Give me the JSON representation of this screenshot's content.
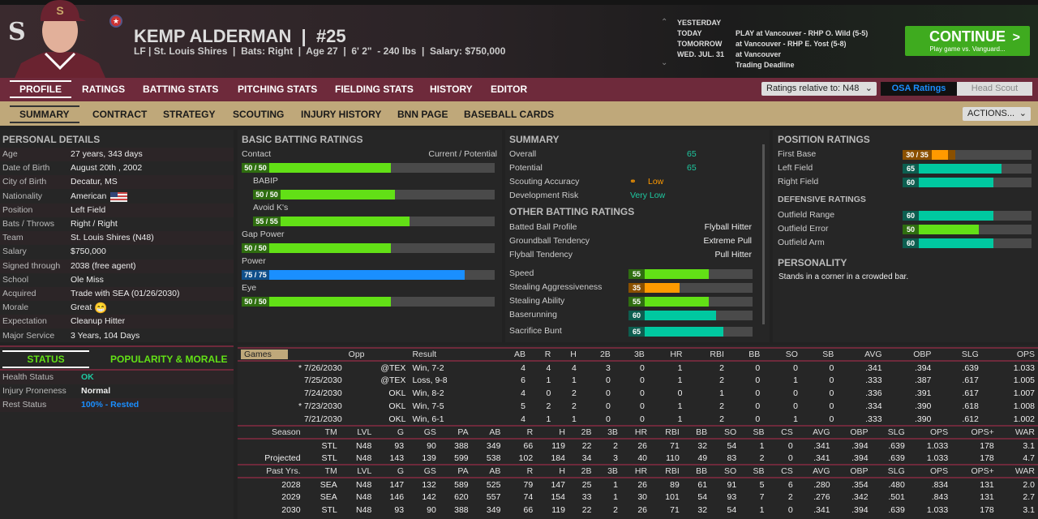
{
  "header": {
    "name": "KEMP ALDERMAN  |  #25",
    "info": "LF | St. Louis Shires  |  Bats: Right  |  Age 27  |  6' 2\"  - 240 lbs  |  Salary: $750,000",
    "logo": "S"
  },
  "schedule": [
    {
      "day": "YESTERDAY",
      "event": ""
    },
    {
      "day": "TODAY",
      "event": "PLAY at Vancouver - RHP O. Wild (5-5)"
    },
    {
      "day": "TOMORROW",
      "event": "at Vancouver - RHP E. Yost (5-8)"
    },
    {
      "day": "WED. JUL. 31",
      "event": "at Vancouver"
    },
    {
      "day": "",
      "event": "Trading Deadline"
    }
  ],
  "continue": {
    "label": "CONTINUE",
    "sub": "Play game vs. Vanguard...",
    "chevron": ">"
  },
  "main_tabs": [
    "PROFILE",
    "RATINGS",
    "BATTING STATS",
    "PITCHING STATS",
    "FIELDING STATS",
    "HISTORY",
    "EDITOR"
  ],
  "ratings_relative": "Ratings relative to: N48",
  "osa": "OSA Ratings",
  "head_scout": "Head Scout",
  "sub_tabs": [
    "SUMMARY",
    "CONTRACT",
    "STRATEGY",
    "SCOUTING",
    "INJURY HISTORY",
    "BNN PAGE",
    "BASEBALL CARDS"
  ],
  "actions": "ACTIONS...",
  "personal": {
    "title": "PERSONAL DETAILS",
    "rows": [
      [
        "Age",
        "27 years, 343 days"
      ],
      [
        "Date of Birth",
        "August 20th , 2002"
      ],
      [
        "City of Birth",
        "Decatur, MS"
      ],
      [
        "Nationality",
        "American"
      ],
      [
        "Position",
        "Left Field"
      ],
      [
        "Bats / Throws",
        "Right / Right"
      ],
      [
        "Team",
        "St. Louis Shires (N48)"
      ],
      [
        "Salary",
        "$750,000"
      ],
      [
        "Signed through",
        "2038 (free agent)"
      ],
      [
        "School",
        "Ole Miss"
      ],
      [
        "Acquired",
        "Trade with SEA (01/26/2030)"
      ],
      [
        "Morale",
        "Great"
      ],
      [
        "Expectation",
        "Cleanup Hitter"
      ],
      [
        "Major Service",
        "3 Years, 104 Days"
      ]
    ]
  },
  "status": {
    "tab1": "STATUS",
    "tab2": "POPULARITY & MORALE",
    "rows": [
      [
        "Health Status",
        "OK",
        "#1ec8a0"
      ],
      [
        "Injury Proneness",
        "Normal",
        "#eeeeee"
      ],
      [
        "Rest Status",
        "100% - Rested",
        "#1a8fff"
      ]
    ]
  },
  "colors": {
    "green": "#62e016",
    "blue": "#1a8fff",
    "orange": "#ff9a00",
    "teal": "#00c8a0",
    "maroon": "#6e2a3b",
    "tan": "#bfa87a"
  },
  "batting": {
    "title": "BASIC BATTING RATINGS",
    "cp": "Current / Potential",
    "items": [
      {
        "name": "Contact",
        "label": "50 / 50",
        "value": 50,
        "color": "green",
        "indent": false
      },
      {
        "name": "BABIP",
        "label": "50 / 50",
        "value": 50,
        "color": "green",
        "indent": true
      },
      {
        "name": "Avoid K's",
        "label": "55 / 55",
        "value": 55,
        "color": "green",
        "indent": true
      },
      {
        "name": "Gap Power",
        "label": "50 / 50",
        "value": 50,
        "color": "green",
        "indent": false
      },
      {
        "name": "Power",
        "label": "75 / 75",
        "value": 75,
        "color": "blue",
        "indent": false
      },
      {
        "name": "Eye",
        "label": "50 / 50",
        "value": 50,
        "color": "green",
        "indent": false
      }
    ]
  },
  "summary": {
    "title": "SUMMARY",
    "overall_l": "Overall",
    "overall": "65",
    "potential_l": "Potential",
    "potential": "65",
    "acc_l": "Scouting Accuracy",
    "acc": "Low",
    "risk_l": "Development Risk",
    "risk": "Very Low",
    "other_title": "OTHER BATTING RATINGS",
    "other": [
      [
        "Batted Ball Profile",
        "Flyball Hitter"
      ],
      [
        "Groundball Tendency",
        "Extreme Pull"
      ],
      [
        "Flyball Tendency",
        "Pull Hitter"
      ]
    ],
    "bars": [
      {
        "name": "Speed",
        "label": "55",
        "value": 55,
        "color": "green"
      },
      {
        "name": "Stealing Aggressiveness",
        "label": "35",
        "value": 35,
        "color": "orange"
      },
      {
        "name": "Stealing Ability",
        "label": "55",
        "value": 55,
        "color": "green"
      },
      {
        "name": "Baserunning",
        "label": "60",
        "value": 60,
        "color": "teal"
      },
      {
        "name": "Sacrifice Bunt",
        "label": "65",
        "value": 65,
        "color": "teal"
      }
    ]
  },
  "position": {
    "title": "POSITION RATINGS",
    "bars": [
      {
        "name": "First Base",
        "label": "30 / 35",
        "value": 30,
        "potential": 35,
        "color": "orange"
      },
      {
        "name": "Left Field",
        "label": "65",
        "value": 65,
        "color": "teal"
      },
      {
        "name": "Right Field",
        "label": "60",
        "value": 60,
        "color": "teal"
      }
    ],
    "def_title": "DEFENSIVE RATINGS",
    "def": [
      {
        "name": "Outfield Range",
        "label": "60",
        "value": 60,
        "color": "teal"
      },
      {
        "name": "Outfield Error",
        "label": "50",
        "value": 50,
        "color": "green"
      },
      {
        "name": "Outfield Arm",
        "label": "60",
        "value": 60,
        "color": "teal"
      }
    ],
    "pers_title": "PERSONALITY",
    "personality": "Stands in a corner in a crowded bar."
  },
  "games": {
    "selector": "Games",
    "headers": [
      "Opp",
      "Result",
      "AB",
      "R",
      "H",
      "2B",
      "3B",
      "HR",
      "RBI",
      "BB",
      "SO",
      "SB",
      "AVG",
      "OBP",
      "SLG",
      "OPS"
    ],
    "rows": [
      [
        "* 7/26/2030",
        "@TEX",
        "Win, 7-2",
        "4",
        "4",
        "4",
        "3",
        "0",
        "1",
        "2",
        "0",
        "0",
        "0",
        ".341",
        ".394",
        ".639",
        "1.033"
      ],
      [
        "7/25/2030",
        "@TEX",
        "Loss, 9-8",
        "6",
        "1",
        "1",
        "0",
        "0",
        "1",
        "2",
        "0",
        "1",
        "0",
        ".333",
        ".387",
        ".617",
        "1.005"
      ],
      [
        "7/24/2030",
        "OKL",
        "Win, 8-2",
        "4",
        "0",
        "2",
        "0",
        "0",
        "0",
        "1",
        "0",
        "0",
        "0",
        ".336",
        ".391",
        ".617",
        "1.007"
      ],
      [
        "* 7/23/2030",
        "OKL",
        "Win, 7-5",
        "5",
        "2",
        "2",
        "0",
        "0",
        "1",
        "2",
        "0",
        "0",
        "0",
        ".334",
        ".390",
        ".618",
        "1.008"
      ],
      [
        "7/21/2030",
        "OKL",
        "Win, 6-1",
        "4",
        "1",
        "1",
        "0",
        "0",
        "1",
        "2",
        "0",
        "1",
        "0",
        ".333",
        ".390",
        ".612",
        "1.002"
      ]
    ]
  },
  "season": {
    "headers": [
      "Season",
      "TM",
      "LVL",
      "G",
      "GS",
      "PA",
      "AB",
      "R",
      "H",
      "2B",
      "3B",
      "HR",
      "RBI",
      "BB",
      "SO",
      "SB",
      "CS",
      "AVG",
      "OBP",
      "SLG",
      "OPS",
      "OPS+",
      "WAR"
    ],
    "rows": [
      [
        "",
        "STL",
        "N48",
        "93",
        "90",
        "388",
        "349",
        "66",
        "119",
        "22",
        "2",
        "26",
        "71",
        "32",
        "54",
        "1",
        "0",
        ".341",
        ".394",
        ".639",
        "1.033",
        "178",
        "3.1"
      ],
      [
        "Projected",
        "STL",
        "N48",
        "143",
        "139",
        "599",
        "538",
        "102",
        "184",
        "34",
        "3",
        "40",
        "110",
        "49",
        "83",
        "2",
        "0",
        ".341",
        ".394",
        ".639",
        "1.033",
        "178",
        "4.7"
      ]
    ]
  },
  "past": {
    "headers": [
      "Past Yrs.",
      "TM",
      "LVL",
      "G",
      "GS",
      "PA",
      "AB",
      "R",
      "H",
      "2B",
      "3B",
      "HR",
      "RBI",
      "BB",
      "SO",
      "SB",
      "CS",
      "AVG",
      "OBP",
      "SLG",
      "OPS",
      "OPS+",
      "WAR"
    ],
    "rows": [
      [
        "2028",
        "SEA",
        "N48",
        "147",
        "132",
        "589",
        "525",
        "79",
        "147",
        "25",
        "1",
        "26",
        "89",
        "61",
        "91",
        "5",
        "6",
        ".280",
        ".354",
        ".480",
        ".834",
        "131",
        "2.0"
      ],
      [
        "2029",
        "SEA",
        "N48",
        "146",
        "142",
        "620",
        "557",
        "74",
        "154",
        "33",
        "1",
        "30",
        "101",
        "54",
        "93",
        "7",
        "2",
        ".276",
        ".342",
        ".501",
        ".843",
        "131",
        "2.7"
      ],
      [
        "2030",
        "STL",
        "N48",
        "93",
        "90",
        "388",
        "349",
        "66",
        "119",
        "22",
        "2",
        "26",
        "71",
        "32",
        "54",
        "1",
        "0",
        ".341",
        ".394",
        ".639",
        "1.033",
        "178",
        "3.1"
      ]
    ]
  }
}
